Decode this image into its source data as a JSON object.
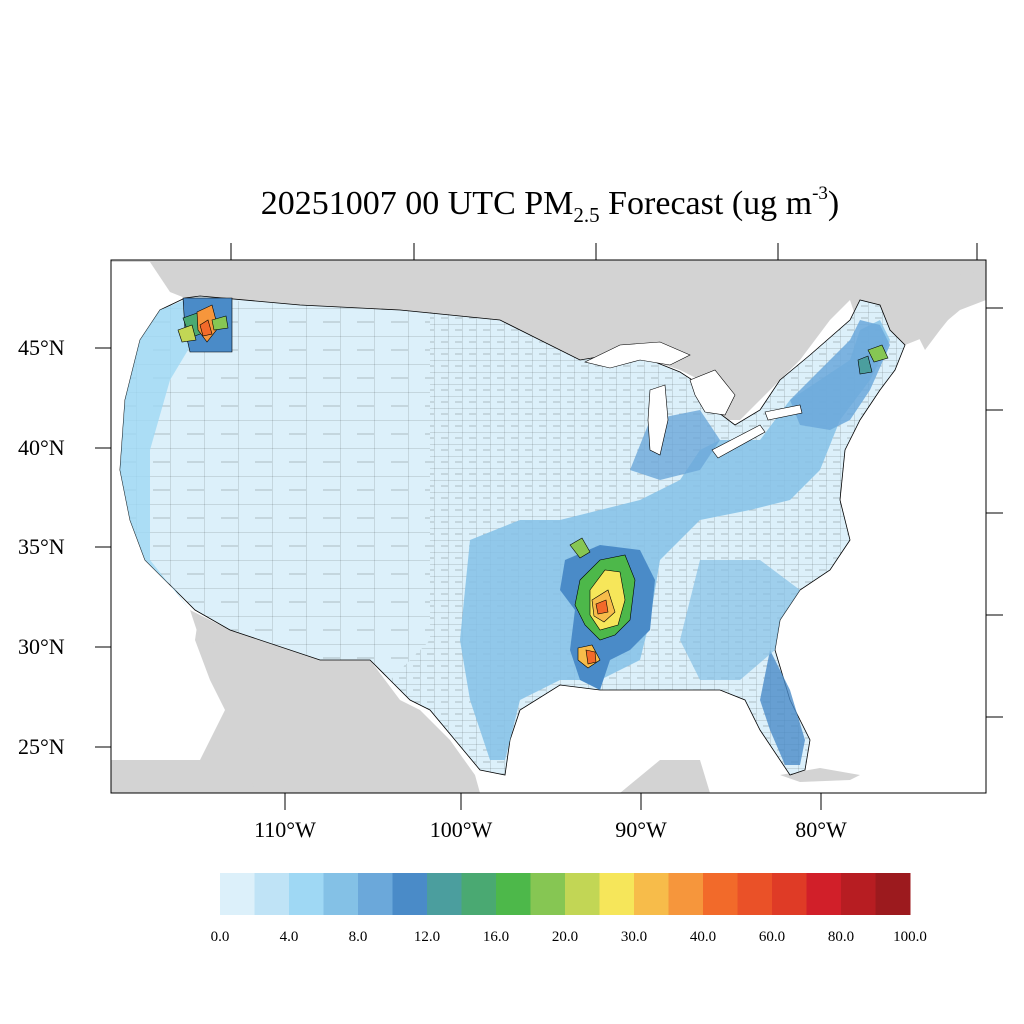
{
  "title": {
    "prefix": "20251007 00 UTC PM",
    "subscript": "2.5",
    "middle": " Forecast (ug m",
    "superscript": "-3",
    "suffix": ")"
  },
  "lat_labels": [
    "45°N",
    "40°N",
    "35°N",
    "30°N",
    "25°N"
  ],
  "lon_labels": [
    "110°W",
    "100°W",
    "90°W",
    "80°W"
  ],
  "colorbar": {
    "labels": [
      "0.0",
      "4.0",
      "8.0",
      "12.0",
      "16.0",
      "20.0",
      "30.0",
      "40.0",
      "60.0",
      "80.0",
      "100.0"
    ],
    "colors": [
      "#dcf0fa",
      "#bfe3f6",
      "#9fd8f4",
      "#84c1e6",
      "#6ba8da",
      "#4a8bc8",
      "#4b9e9e",
      "#4aa972",
      "#4db84a",
      "#86c653",
      "#c2d655",
      "#f6e65a",
      "#f7bc4a",
      "#f6963c",
      "#f26a2a",
      "#ea5128",
      "#df3b26",
      "#d11f29",
      "#b71d22",
      "#9c1a1e"
    ]
  },
  "colors": {
    "ocean": "#ffffff",
    "land_outside": "#d3d3d3",
    "background_conus": "#dcf0fa",
    "county_lines": "#000000"
  }
}
